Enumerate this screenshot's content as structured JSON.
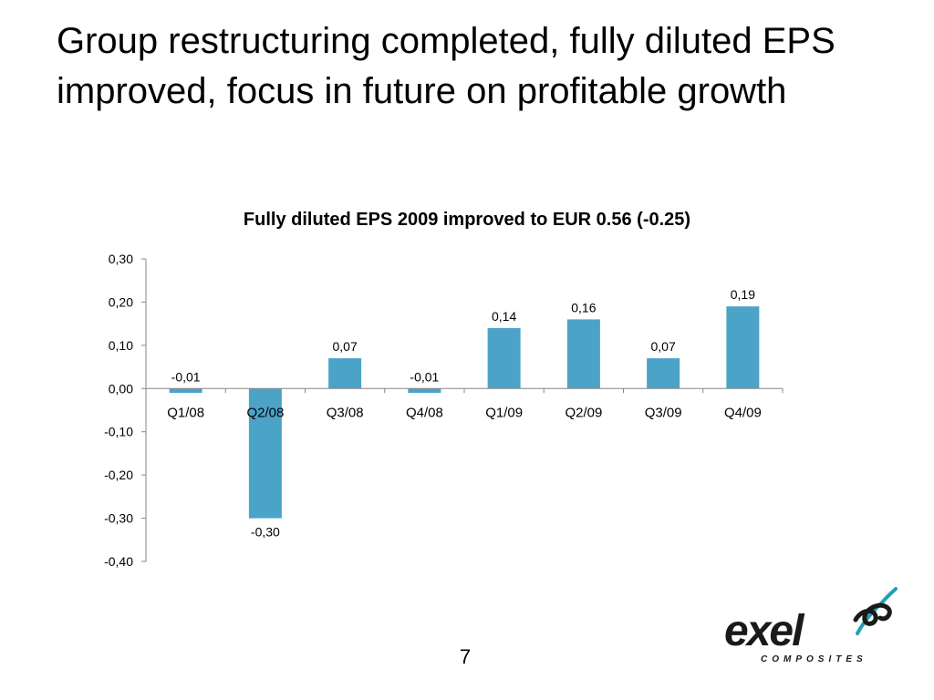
{
  "slide": {
    "title": "Group restructuring completed, fully diluted EPS improved, focus in future on profitable growth",
    "page_number": "7"
  },
  "logo": {
    "name": "exel",
    "tagline": "COMPOSITES",
    "colors": {
      "wordmark": "#1a1a1a",
      "swoosh": "#1f9fb8"
    }
  },
  "chart_data": {
    "type": "bar",
    "title": "Fully diluted EPS 2009 improved to EUR 0.56 (-0.25)",
    "categories": [
      "Q1/08",
      "Q2/08",
      "Q3/08",
      "Q4/08",
      "Q1/09",
      "Q2/09",
      "Q3/09",
      "Q4/09"
    ],
    "values": [
      -0.01,
      -0.3,
      0.07,
      -0.01,
      0.14,
      0.16,
      0.07,
      0.19
    ],
    "value_labels": [
      "-0,01",
      "-0,30",
      "0,07",
      "-0,01",
      "0,14",
      "0,16",
      "0,07",
      "0,19"
    ],
    "ylim": [
      -0.4,
      0.3
    ],
    "yticks": [
      "0,30",
      "0,20",
      "0,10",
      "0,00",
      "-0,10",
      "-0,20",
      "-0,30",
      "-0,40"
    ],
    "ytick_values": [
      0.3,
      0.2,
      0.1,
      0.0,
      -0.1,
      -0.2,
      -0.3,
      -0.4
    ],
    "bar_color": "#4ba3c8",
    "grid": false,
    "legend": "none"
  }
}
